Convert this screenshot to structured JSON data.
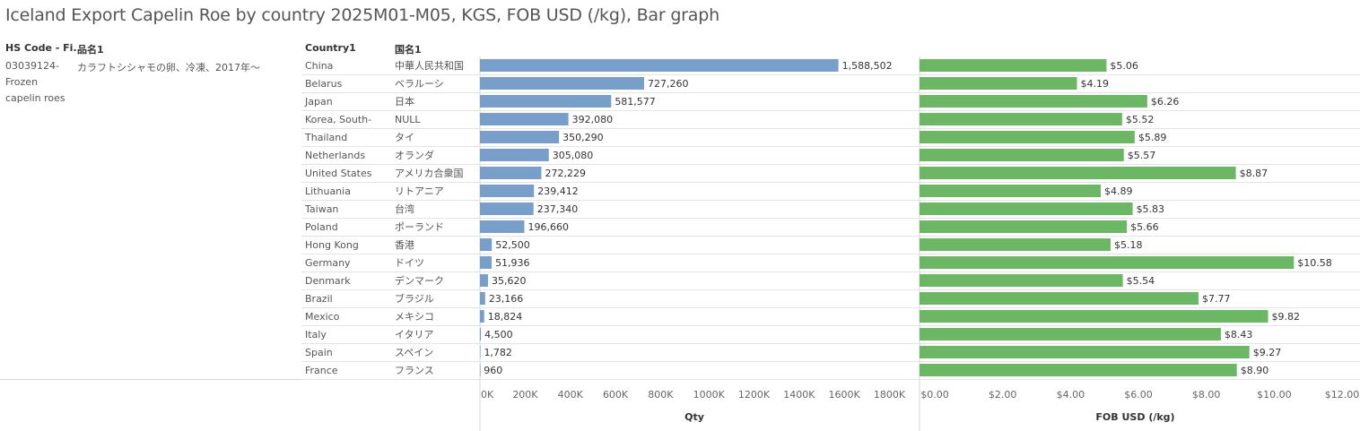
{
  "title": "Iceland Export Capelin Roe by country 2025M01-M05, KGS, FOB USD (/kg), Bar graph",
  "headers": {
    "hs_code": "HS Code - Fi..",
    "hinmei": "品名1",
    "country": "Country1",
    "kokumei": "国名1"
  },
  "hs_code_lines": [
    "03039124-",
    "Frozen",
    "capelin roes"
  ],
  "product_name": "カラフトシシャモの卵、冷凍、2017年～",
  "colors": {
    "qty_bar": "#779fc9",
    "fob_bar": "#6cb763",
    "grid": "#d6d6d6",
    "axis_text": "#666666"
  },
  "chart_data": [
    {
      "type": "bar",
      "orientation": "horizontal",
      "xlabel": "Qty",
      "xlim": [
        0,
        1900000
      ],
      "ticks": [
        0,
        200000,
        400000,
        600000,
        800000,
        1000000,
        1200000,
        1400000,
        1600000,
        1800000
      ],
      "tick_labels": [
        "0K",
        "200K",
        "400K",
        "600K",
        "800K",
        "1000K",
        "1200K",
        "1400K",
        "1600K",
        "1800K"
      ],
      "categories": [
        "China",
        "Belarus",
        "Japan",
        "Korea, South-",
        "Thailand",
        "Netherlands",
        "United States",
        "Lithuania",
        "Taiwan",
        "Poland",
        "Hong Kong",
        "Germany",
        "Denmark",
        "Brazil",
        "Mexico",
        "Italy",
        "Spain",
        "France"
      ],
      "categories_ja": [
        "中華人民共和国",
        "ベラルーシ",
        "日本",
        "NULL",
        "タイ",
        "オランダ",
        "アメリカ合衆国",
        "リトアニア",
        "台湾",
        "ポーランド",
        "香港",
        "ドイツ",
        "デンマーク",
        "ブラジル",
        "メキシコ",
        "イタリア",
        "スペイン",
        "フランス"
      ],
      "values": [
        1588502,
        727260,
        581577,
        392080,
        350290,
        305080,
        272229,
        239412,
        237340,
        196660,
        52500,
        51936,
        35620,
        23166,
        18824,
        4500,
        1782,
        960
      ],
      "value_labels": [
        "1,588,502",
        "727,260",
        "581,577",
        "392,080",
        "350,290",
        "305,080",
        "272,229",
        "239,412",
        "237,340",
        "196,660",
        "52,500",
        "51,936",
        "35,620",
        "23,166",
        "18,824",
        "4,500",
        "1,782",
        "960"
      ],
      "grid": true
    },
    {
      "type": "bar",
      "orientation": "horizontal",
      "xlabel": "FOB USD (/kg)",
      "xlim": [
        0,
        12
      ],
      "ticks": [
        0,
        2,
        4,
        6,
        8,
        10,
        12
      ],
      "tick_labels": [
        "$0.00",
        "$2.00",
        "$4.00",
        "$6.00",
        "$8.00",
        "$10.00",
        "$12.00"
      ],
      "categories": [
        "China",
        "Belarus",
        "Japan",
        "Korea, South-",
        "Thailand",
        "Netherlands",
        "United States",
        "Lithuania",
        "Taiwan",
        "Poland",
        "Hong Kong",
        "Germany",
        "Denmark",
        "Brazil",
        "Mexico",
        "Italy",
        "Spain",
        "France"
      ],
      "values": [
        5.06,
        4.19,
        6.26,
        5.52,
        5.89,
        5.57,
        8.87,
        4.89,
        5.83,
        5.66,
        5.18,
        10.58,
        5.54,
        7.77,
        9.82,
        8.43,
        9.27,
        8.9
      ],
      "value_labels": [
        "$5.06",
        "$4.19",
        "$6.26",
        "$5.52",
        "$5.89",
        "$5.57",
        "$8.87",
        "$4.89",
        "$5.83",
        "$5.66",
        "$5.18",
        "$10.58",
        "$5.54",
        "$7.77",
        "$9.82",
        "$8.43",
        "$9.27",
        "$8.90"
      ],
      "grid": true
    }
  ]
}
